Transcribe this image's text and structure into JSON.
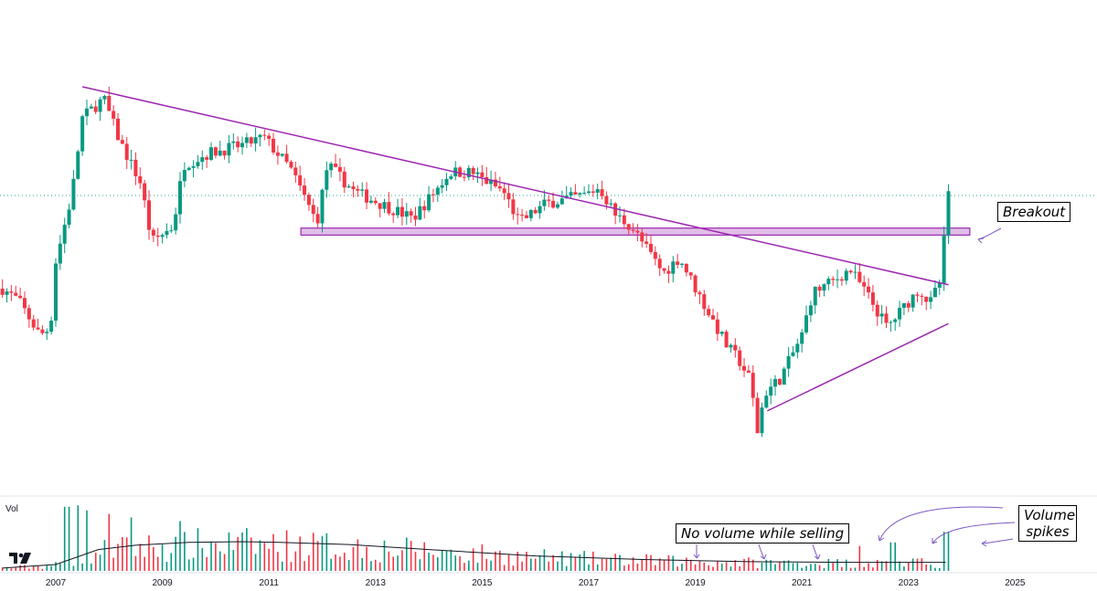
{
  "chart_data": {
    "type": "candlestick",
    "xlim": [
      2006.0,
      2025.6
    ],
    "ylim": [
      0,
      100
    ],
    "x_ticks": [
      "2007",
      "2009",
      "2011",
      "2013",
      "2015",
      "2017",
      "2019",
      "2021",
      "2023",
      "2025"
    ],
    "volume_label": "Vol",
    "colors": {
      "up": "#089981",
      "down": "#f23645",
      "trend": "#9c27b0",
      "zone": "#e1bee7",
      "vol_ma": "#131722",
      "price_line": "#26a69a"
    },
    "price_line": 72.0,
    "support_zone": {
      "x": [
        2011.6,
        2024.15
      ],
      "y": [
        61.8,
        63.6
      ]
    },
    "trendlines": [
      {
        "from": [
          2007.5,
          100.0
        ],
        "to": [
          2023.75,
          49.0
        ]
      },
      {
        "from": [
          2020.35,
          16.5
        ],
        "to": [
          2023.75,
          39.0
        ]
      }
    ],
    "anchors": [
      [
        2006.0,
        48
      ],
      [
        2006.3,
        45
      ],
      [
        2006.7,
        36
      ],
      [
        2006.9,
        38
      ],
      [
        2007.0,
        55
      ],
      [
        2007.3,
        72
      ],
      [
        2007.5,
        92
      ],
      [
        2007.9,
        97
      ],
      [
        2008.2,
        86
      ],
      [
        2008.6,
        75
      ],
      [
        2008.8,
        60
      ],
      [
        2009.2,
        64
      ],
      [
        2009.4,
        80
      ],
      [
        2009.9,
        83
      ],
      [
        2010.5,
        85
      ],
      [
        2010.9,
        87
      ],
      [
        2011.4,
        79
      ],
      [
        2011.9,
        65
      ],
      [
        2012.1,
        80
      ],
      [
        2012.6,
        73
      ],
      [
        2013.4,
        68
      ],
      [
        2013.7,
        66
      ],
      [
        2014.4,
        78
      ],
      [
        2014.8,
        78
      ],
      [
        2015.4,
        73
      ],
      [
        2015.7,
        65
      ],
      [
        2016.2,
        70
      ],
      [
        2016.9,
        72
      ],
      [
        2017.2,
        74
      ],
      [
        2017.5,
        67
      ],
      [
        2017.8,
        64
      ],
      [
        2018.4,
        52
      ],
      [
        2018.7,
        56
      ],
      [
        2019.2,
        43
      ],
      [
        2019.6,
        33
      ],
      [
        2019.8,
        30
      ],
      [
        2020.05,
        24
      ],
      [
        2020.15,
        10
      ],
      [
        2020.3,
        21
      ],
      [
        2020.6,
        25
      ],
      [
        2021.0,
        36
      ],
      [
        2021.2,
        47
      ],
      [
        2021.6,
        50
      ],
      [
        2021.9,
        53
      ],
      [
        2022.2,
        47
      ],
      [
        2022.6,
        38
      ],
      [
        2022.9,
        43
      ],
      [
        2023.2,
        48
      ],
      [
        2023.4,
        44
      ],
      [
        2023.6,
        50
      ],
      [
        2023.75,
        73
      ]
    ],
    "volume_ma": [
      [
        2006.0,
        4
      ],
      [
        2007.0,
        9
      ],
      [
        2007.8,
        30
      ],
      [
        2008.5,
        36
      ],
      [
        2009.5,
        40
      ],
      [
        2010.5,
        41
      ],
      [
        2011.2,
        40
      ],
      [
        2012.5,
        37
      ],
      [
        2014.0,
        30
      ],
      [
        2016.0,
        21
      ],
      [
        2018.0,
        16
      ],
      [
        2020.0,
        13
      ],
      [
        2022.0,
        12
      ],
      [
        2023.7,
        12
      ]
    ],
    "volume_spikes": [
      [
        2007.2,
        90
      ],
      [
        2007.4,
        92
      ],
      [
        2007.55,
        85
      ],
      [
        2008.0,
        80
      ],
      [
        2008.4,
        75
      ],
      [
        2009.3,
        70
      ],
      [
        2022.05,
        35
      ],
      [
        2022.7,
        40
      ],
      [
        2023.7,
        55
      ]
    ],
    "annotations": {
      "breakout": "Breakout",
      "no_volume": "No volume while selling",
      "volume_spikes": "Volume\nspikes"
    }
  }
}
